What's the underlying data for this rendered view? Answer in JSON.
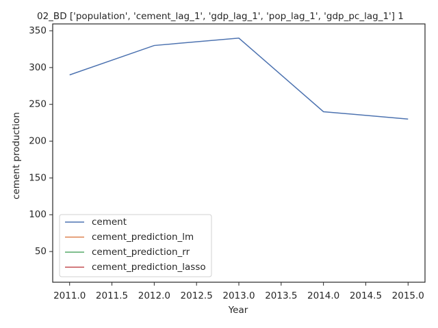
{
  "chart_data": {
    "type": "line",
    "title": "02_BD ['population', 'cement_lag_1', 'gdp_lag_1', 'pop_lag_1', 'gdp_pc_lag_1'] 1",
    "xlabel": "Year",
    "ylabel": "cement production",
    "x": [
      2011,
      2012,
      2013,
      2014,
      2015
    ],
    "series": [
      {
        "name": "cement",
        "color": "#4c72b0",
        "values": [
          290,
          330,
          340,
          240,
          230
        ]
      },
      {
        "name": "cement_prediction_lm",
        "color": "#dd8452",
        "values": [
          null,
          null,
          null,
          null,
          null
        ]
      },
      {
        "name": "cement_prediction_rr",
        "color": "#55a868",
        "values": [
          null,
          null,
          null,
          null,
          null
        ]
      },
      {
        "name": "cement_prediction_lasso",
        "color": "#c44e52",
        "values": [
          null,
          null,
          null,
          null,
          null
        ]
      }
    ],
    "xlim": [
      2010.8,
      2015.2
    ],
    "xticks": [
      {
        "value": 2011,
        "label": "2011.0"
      },
      {
        "value": 2011.5,
        "label": "2011.5"
      },
      {
        "value": 2012,
        "label": "2012.0"
      },
      {
        "value": 2012.5,
        "label": "2012.5"
      },
      {
        "value": 2013,
        "label": "2013.0"
      },
      {
        "value": 2013.5,
        "label": "2013.5"
      },
      {
        "value": 2014,
        "label": "2014.0"
      },
      {
        "value": 2014.5,
        "label": "2014.5"
      },
      {
        "value": 2015,
        "label": "2015.0"
      }
    ],
    "ylim": [
      8.3,
      359.3
    ],
    "yticks": [
      50,
      100,
      150,
      200,
      250,
      300,
      350
    ],
    "legend": "lower left"
  }
}
